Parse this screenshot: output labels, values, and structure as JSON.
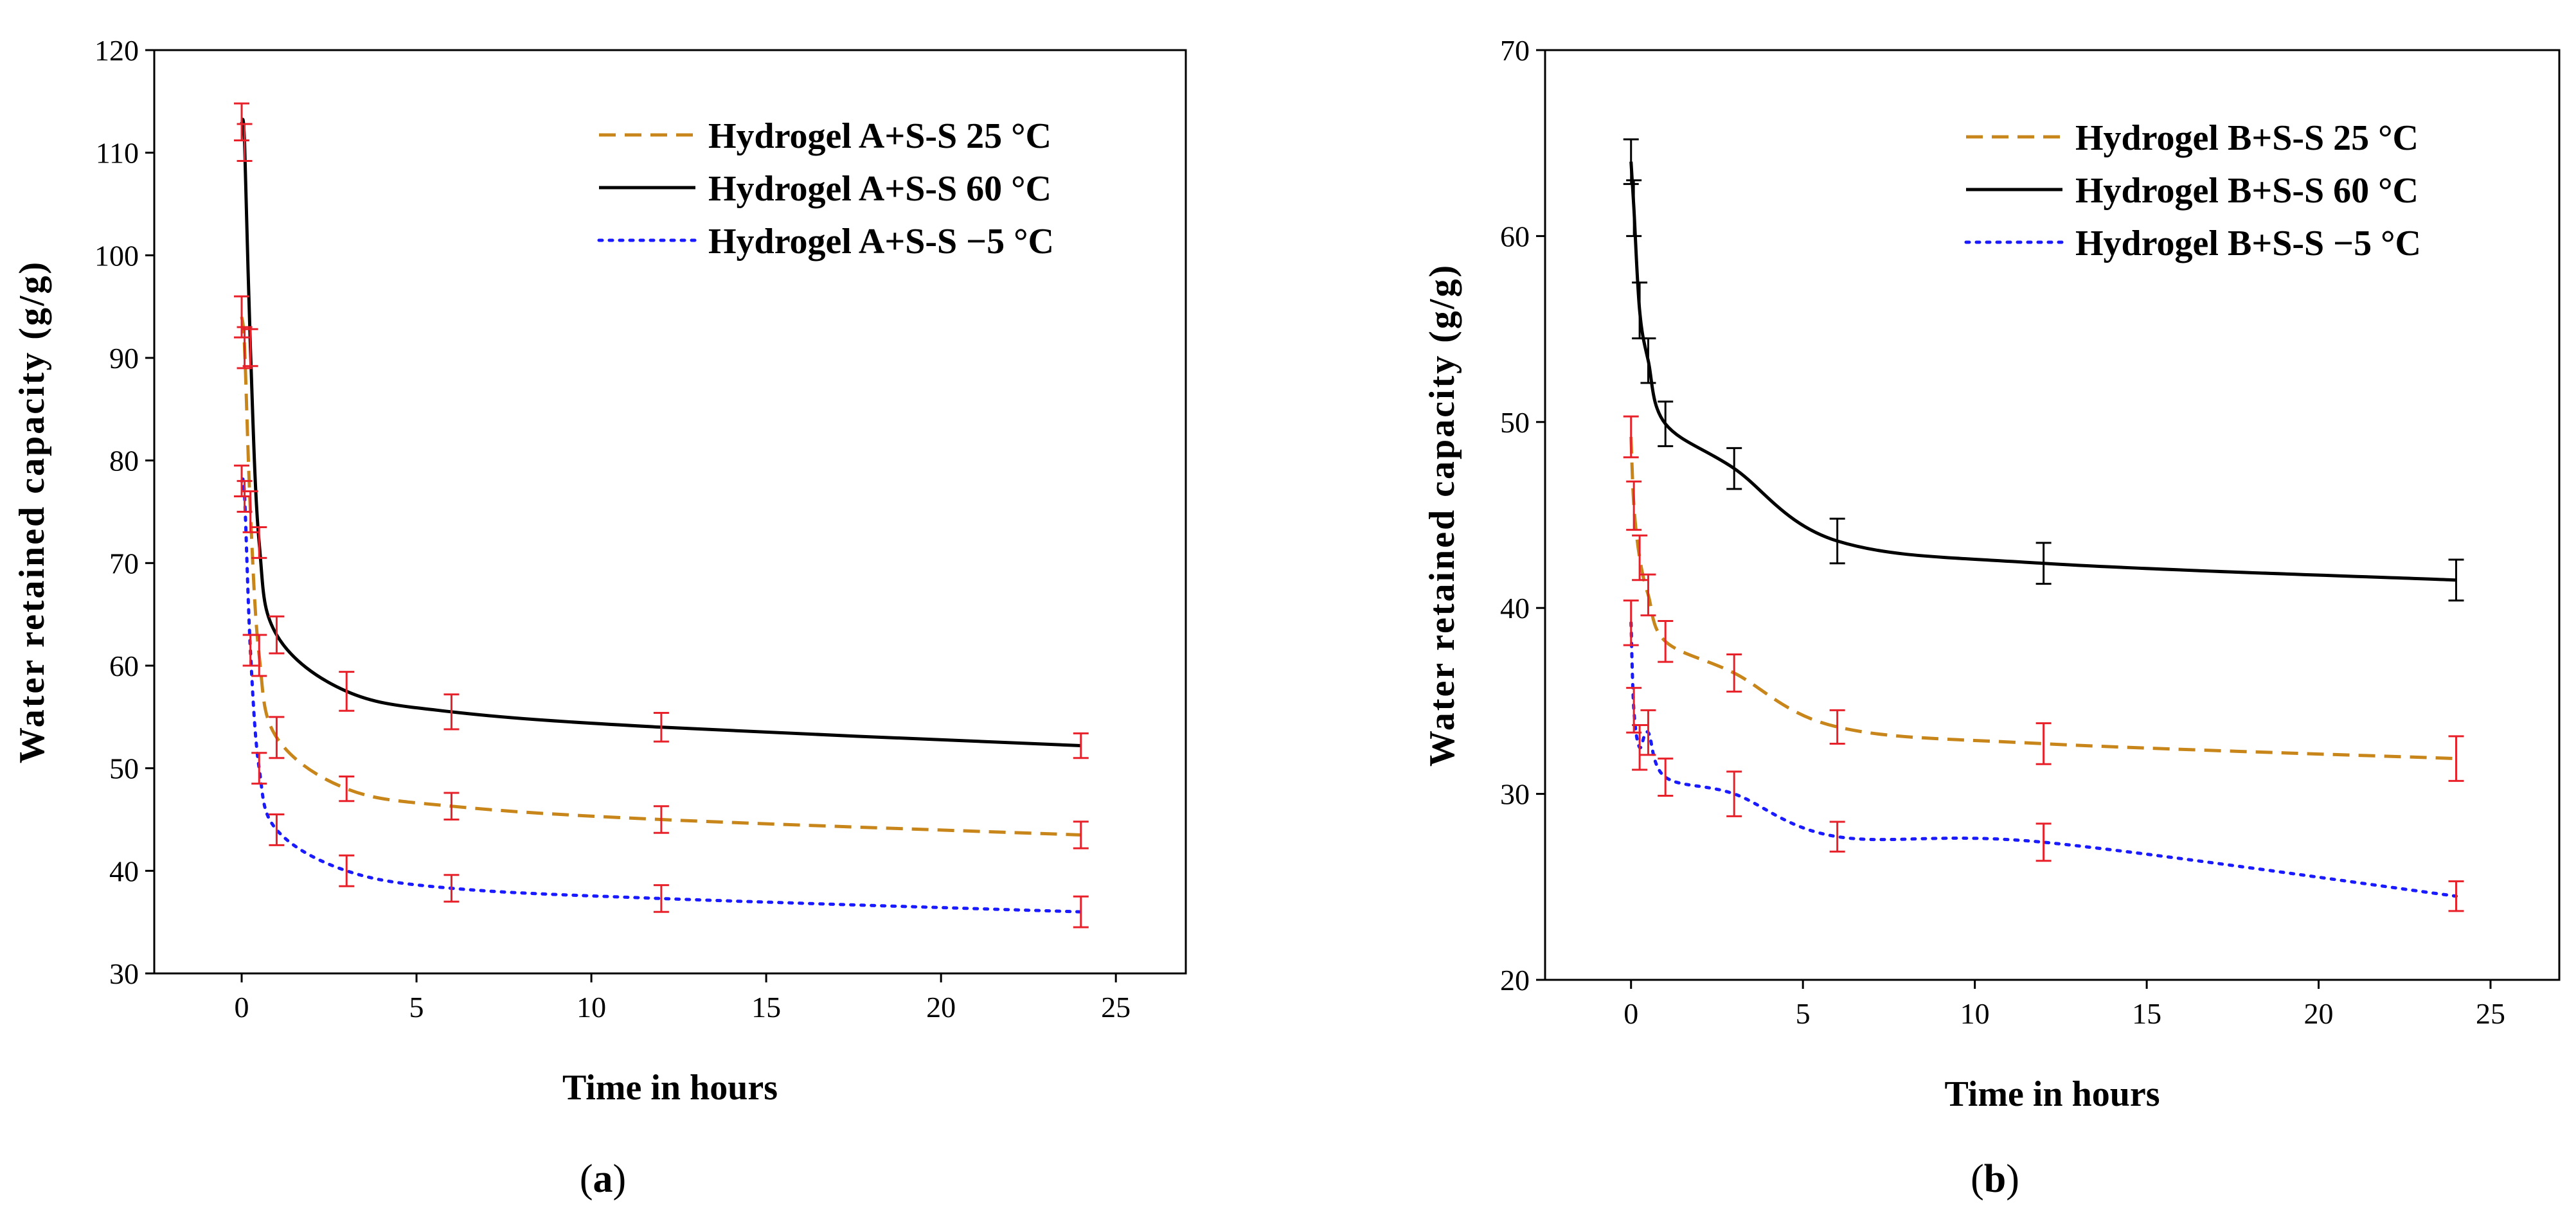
{
  "chart_data": [
    {
      "id": "a",
      "type": "line",
      "caption": "a",
      "title": "",
      "xlabel": "Time in hours",
      "ylabel": "Water retained capacity (g/g)",
      "xlim": [
        -2.5,
        27
      ],
      "ylim": [
        30,
        120
      ],
      "xticks": [
        0,
        5,
        10,
        15,
        20,
        25
      ],
      "yticks": [
        30,
        40,
        50,
        60,
        70,
        80,
        90,
        100,
        110,
        120
      ],
      "x": [
        0,
        0.083,
        0.25,
        0.5,
        1,
        3,
        6,
        12,
        24
      ],
      "legend_position": "top-right",
      "error_color": "#e8202a",
      "series": [
        {
          "name": "Hydrogel A+S-S 25 °C",
          "style": "dashed",
          "color": "#c8861a",
          "values": [
            94,
            91,
            75,
            61,
            53,
            48,
            46.3,
            45,
            43.5
          ],
          "errors": [
            2,
            2,
            2,
            2,
            2,
            1.2,
            1.3,
            1.3,
            1.3
          ]
        },
        {
          "name": "Hydrogel A+S-S 60 °C",
          "style": "solid",
          "color": "#000000",
          "values": [
            113,
            111,
            91,
            72,
            63,
            57.5,
            55.5,
            54,
            52.2
          ],
          "errors": [
            1.8,
            1.8,
            1.8,
            1.5,
            1.8,
            1.9,
            1.7,
            1.4,
            1.2
          ]
        },
        {
          "name": "Hydrogel A+S-S −5 °C",
          "style": "dotted",
          "color": "#1a1aff",
          "values": [
            78,
            76.5,
            61.5,
            50,
            44,
            40,
            38.3,
            37.3,
            36
          ],
          "errors": [
            1.5,
            1.5,
            1.5,
            1.5,
            1.5,
            1.5,
            1.3,
            1.3,
            1.5
          ]
        }
      ]
    },
    {
      "id": "b",
      "type": "line",
      "caption": "b",
      "title": "",
      "xlabel": "Time in hours",
      "ylabel": "Water retained capacity (g/g)",
      "xlim": [
        -2.5,
        27
      ],
      "ylim": [
        20,
        70
      ],
      "xticks": [
        0,
        5,
        10,
        15,
        20,
        25
      ],
      "yticks": [
        20,
        30,
        40,
        50,
        60,
        70
      ],
      "x": [
        0,
        0.083,
        0.25,
        0.5,
        1,
        3,
        6,
        12,
        24
      ],
      "legend_position": "top-right",
      "error_color": "#e8202a",
      "series": [
        {
          "name": "Hydrogel B+S-S 25 °C",
          "style": "dashed",
          "color": "#c8861a",
          "values": [
            49.2,
            45.5,
            42.7,
            40.7,
            38.2,
            36.5,
            33.6,
            32.7,
            31.9
          ],
          "errors": [
            1.1,
            1.3,
            1.2,
            1.1,
            1.1,
            1.0,
            0.9,
            1.1,
            1.2
          ],
          "error_color": "#e8202a"
        },
        {
          "name": "Hydrogel B+S-S 60 °C",
          "style": "solid",
          "color": "#000000",
          "values": [
            64,
            61.5,
            56,
            53.3,
            49.9,
            47.5,
            43.6,
            42.4,
            41.5
          ],
          "errors": [
            1.2,
            1.5,
            1.5,
            1.2,
            1.2,
            1.1,
            1.2,
            1.1,
            1.1
          ],
          "error_color": "#000000"
        },
        {
          "name": "Hydrogel B+S-S −5  °C",
          "style": "dotted",
          "color": "#1a1aff",
          "values": [
            39.2,
            34.5,
            32.5,
            33.3,
            30.9,
            30,
            27.7,
            27.4,
            24.5
          ],
          "errors": [
            1.2,
            1.2,
            1.2,
            1.2,
            1.0,
            1.2,
            0.8,
            1.0,
            0.8
          ],
          "error_color": "#e8202a"
        }
      ]
    }
  ]
}
